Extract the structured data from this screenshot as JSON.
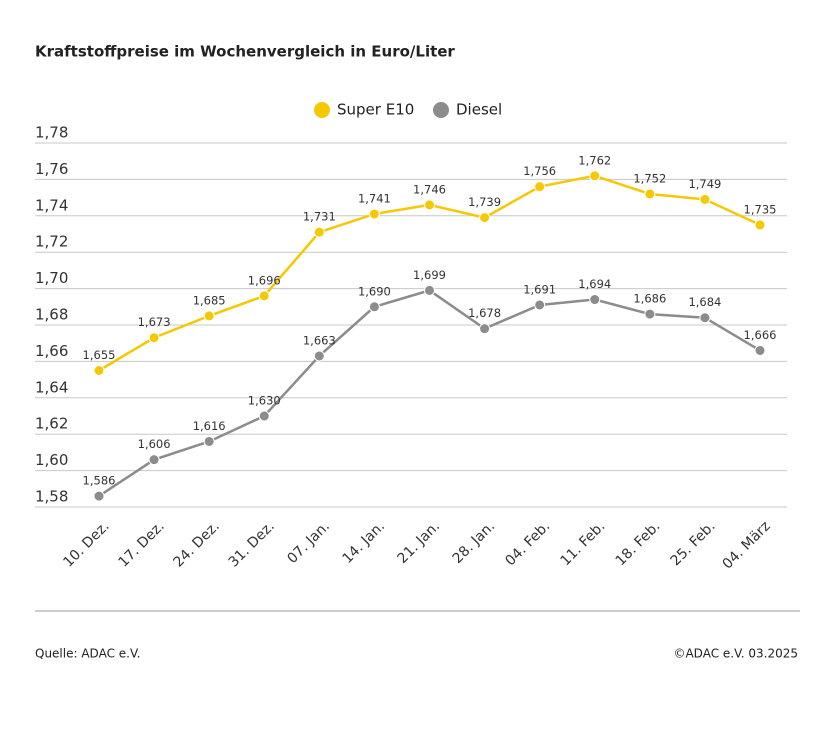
{
  "chart_data": {
    "type": "line",
    "title": "Kraftstoffpreise im Wochenvergleich in Euro/Liter",
    "categories": [
      "10. Dez.",
      "17. Dez.",
      "24. Dez.",
      "31. Dez.",
      "07. Jan.",
      "14. Jan.",
      "21. Jan.",
      "28. Jan.",
      "04. Feb.",
      "11. Feb.",
      "18. Feb.",
      "25. Feb.",
      "04. März"
    ],
    "series": [
      {
        "name": "Super E10",
        "color": "#f5c800",
        "values": [
          1.655,
          1.673,
          1.685,
          1.696,
          1.731,
          1.741,
          1.746,
          1.739,
          1.756,
          1.762,
          1.752,
          1.749,
          1.735
        ],
        "value_labels": [
          "1,655",
          "1,673",
          "1,685",
          "1,696",
          "1,731",
          "1,741",
          "1,746",
          "1,739",
          "1,756",
          "1,762",
          "1,752",
          "1,749",
          "1,735"
        ]
      },
      {
        "name": "Diesel",
        "color": "#8c8c8c",
        "values": [
          1.586,
          1.606,
          1.616,
          1.63,
          1.663,
          1.69,
          1.699,
          1.678,
          1.691,
          1.694,
          1.686,
          1.684,
          1.666
        ],
        "value_labels": [
          "1,586",
          "1,606",
          "1,616",
          "1,630",
          "1,663",
          "1,690",
          "1,699",
          "1,678",
          "1,691",
          "1,694",
          "1,686",
          "1,684",
          "1,666"
        ]
      }
    ],
    "ylim": [
      1.58,
      1.78
    ],
    "yticks": [
      {
        "value": 1.58,
        "label": "1,58"
      },
      {
        "value": 1.6,
        "label": "1,60"
      },
      {
        "value": 1.62,
        "label": "1,62"
      },
      {
        "value": 1.64,
        "label": "1,64"
      },
      {
        "value": 1.66,
        "label": "1,66"
      },
      {
        "value": 1.68,
        "label": "1,68"
      },
      {
        "value": 1.7,
        "label": "1,70"
      },
      {
        "value": 1.72,
        "label": "1,72"
      },
      {
        "value": 1.74,
        "label": "1,74"
      },
      {
        "value": 1.76,
        "label": "1,76"
      },
      {
        "value": 1.78,
        "label": "1,78"
      }
    ],
    "grid": true,
    "source": "Quelle: ADAC e.V.",
    "copyright": "©ADAC e.V. 03.2025"
  }
}
